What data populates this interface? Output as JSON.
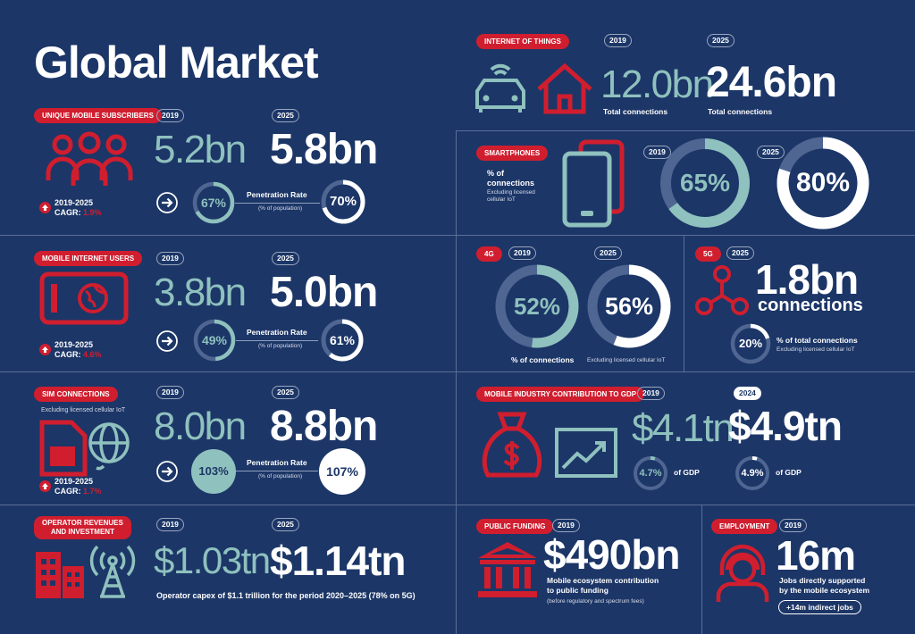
{
  "title": "Global Market",
  "subscribers": {
    "tag": "UNIQUE MOBILE SUBSCRIBERS",
    "y1": "2019",
    "y2": "2025",
    "v1": "5.2bn",
    "v2": "5.8bn",
    "cagr_label": "2019-2025",
    "cagr_prefix": "CAGR:",
    "cagr_value": "1.9%",
    "pen_label": "Penetration Rate",
    "pen_sub": "(% of population)",
    "p1": "67%",
    "p2": "70%",
    "p1_frac": 0.67,
    "p2_frac": 0.7
  },
  "internet_users": {
    "tag": "MOBILE INTERNET USERS",
    "y1": "2019",
    "y2": "2025",
    "v1": "3.8bn",
    "v2": "5.0bn",
    "cagr_label": "2019-2025",
    "cagr_prefix": "CAGR:",
    "cagr_value": "4.6%",
    "pen_label": "Penetration Rate",
    "pen_sub": "(% of population)",
    "p1": "49%",
    "p2": "61%",
    "p1_frac": 0.49,
    "p2_frac": 0.61
  },
  "sim": {
    "tag": "SIM CONNECTIONS",
    "note": "Excluding licensed cellular IoT",
    "y1": "2019",
    "y2": "2025",
    "v1": "8.0bn",
    "v2": "8.8bn",
    "cagr_label": "2019-2025",
    "cagr_prefix": "CAGR:",
    "cagr_value": "1.7%",
    "pen_label": "Penetration Rate",
    "pen_sub": "(% of population)",
    "p1": "103%",
    "p2": "107%"
  },
  "revenue": {
    "tag_line1": "OPERATOR REVENUES",
    "tag_line2": "AND INVESTMENT",
    "y1": "2019",
    "y2": "2025",
    "v1": "$1.03tn",
    "v2": "$1.14tn",
    "note": "Operator capex of $1.1 trillion for the period 2020–2025 (78% on 5G)"
  },
  "iot": {
    "tag": "INTERNET OF THINGS",
    "y1": "2019",
    "y2": "2025",
    "v1": "12.0bn",
    "v2": "24.6bn",
    "l1": "Total connections",
    "l2": "Total connections"
  },
  "smartphones": {
    "tag": "SMARTPHONES",
    "desc_line1": "% of",
    "desc_line2": "connections",
    "note_line1": "Excluding licensed",
    "note_line2": "cellular IoT",
    "y1": "2019",
    "y2": "2025",
    "p1": "65%",
    "p2": "80%",
    "p1_frac": 0.65,
    "p2_frac": 0.8
  },
  "four_g": {
    "tag": "4G",
    "y1": "2019",
    "y2": "2025",
    "p1": "52%",
    "p2": "56%",
    "p1_frac": 0.52,
    "p2_frac": 0.56,
    "label": "% of connections",
    "note": "Excluding licensed cellular IoT"
  },
  "five_g": {
    "tag": "5G",
    "y": "2025",
    "v": "1.8bn",
    "v_sub": "connections",
    "p": "20%",
    "p_frac": 0.2,
    "label": "% of total connections",
    "note": "Excluding licensed cellular IoT"
  },
  "gdp": {
    "tag": "MOBILE INDUSTRY CONTRIBUTION TO GDP",
    "y1": "2019",
    "y2": "2024",
    "v1": "$4.1tn",
    "v2": "$4.9tn",
    "p1": "4.7%",
    "p2": "4.9%",
    "p1_frac": 0.047,
    "p2_frac": 0.049,
    "of_gdp": "of GDP"
  },
  "funding": {
    "tag": "PUBLIC FUNDING",
    "y": "2019",
    "v": "$490bn",
    "l_line1": "Mobile ecosystem contribution",
    "l_line2": "to public funding",
    "note": "(before regulatory and spectrum fees)"
  },
  "employment": {
    "tag": "EMPLOYMENT",
    "y": "2019",
    "v": "16m",
    "l_line1": "Jobs directly supported",
    "l_line2": "by the mobile ecosystem",
    "badge": "+14m indirect jobs"
  },
  "colors": {
    "bg": "#1c3667",
    "red": "#d01e2f",
    "teal": "#8fc1be",
    "ring_track": "#4f6692"
  }
}
